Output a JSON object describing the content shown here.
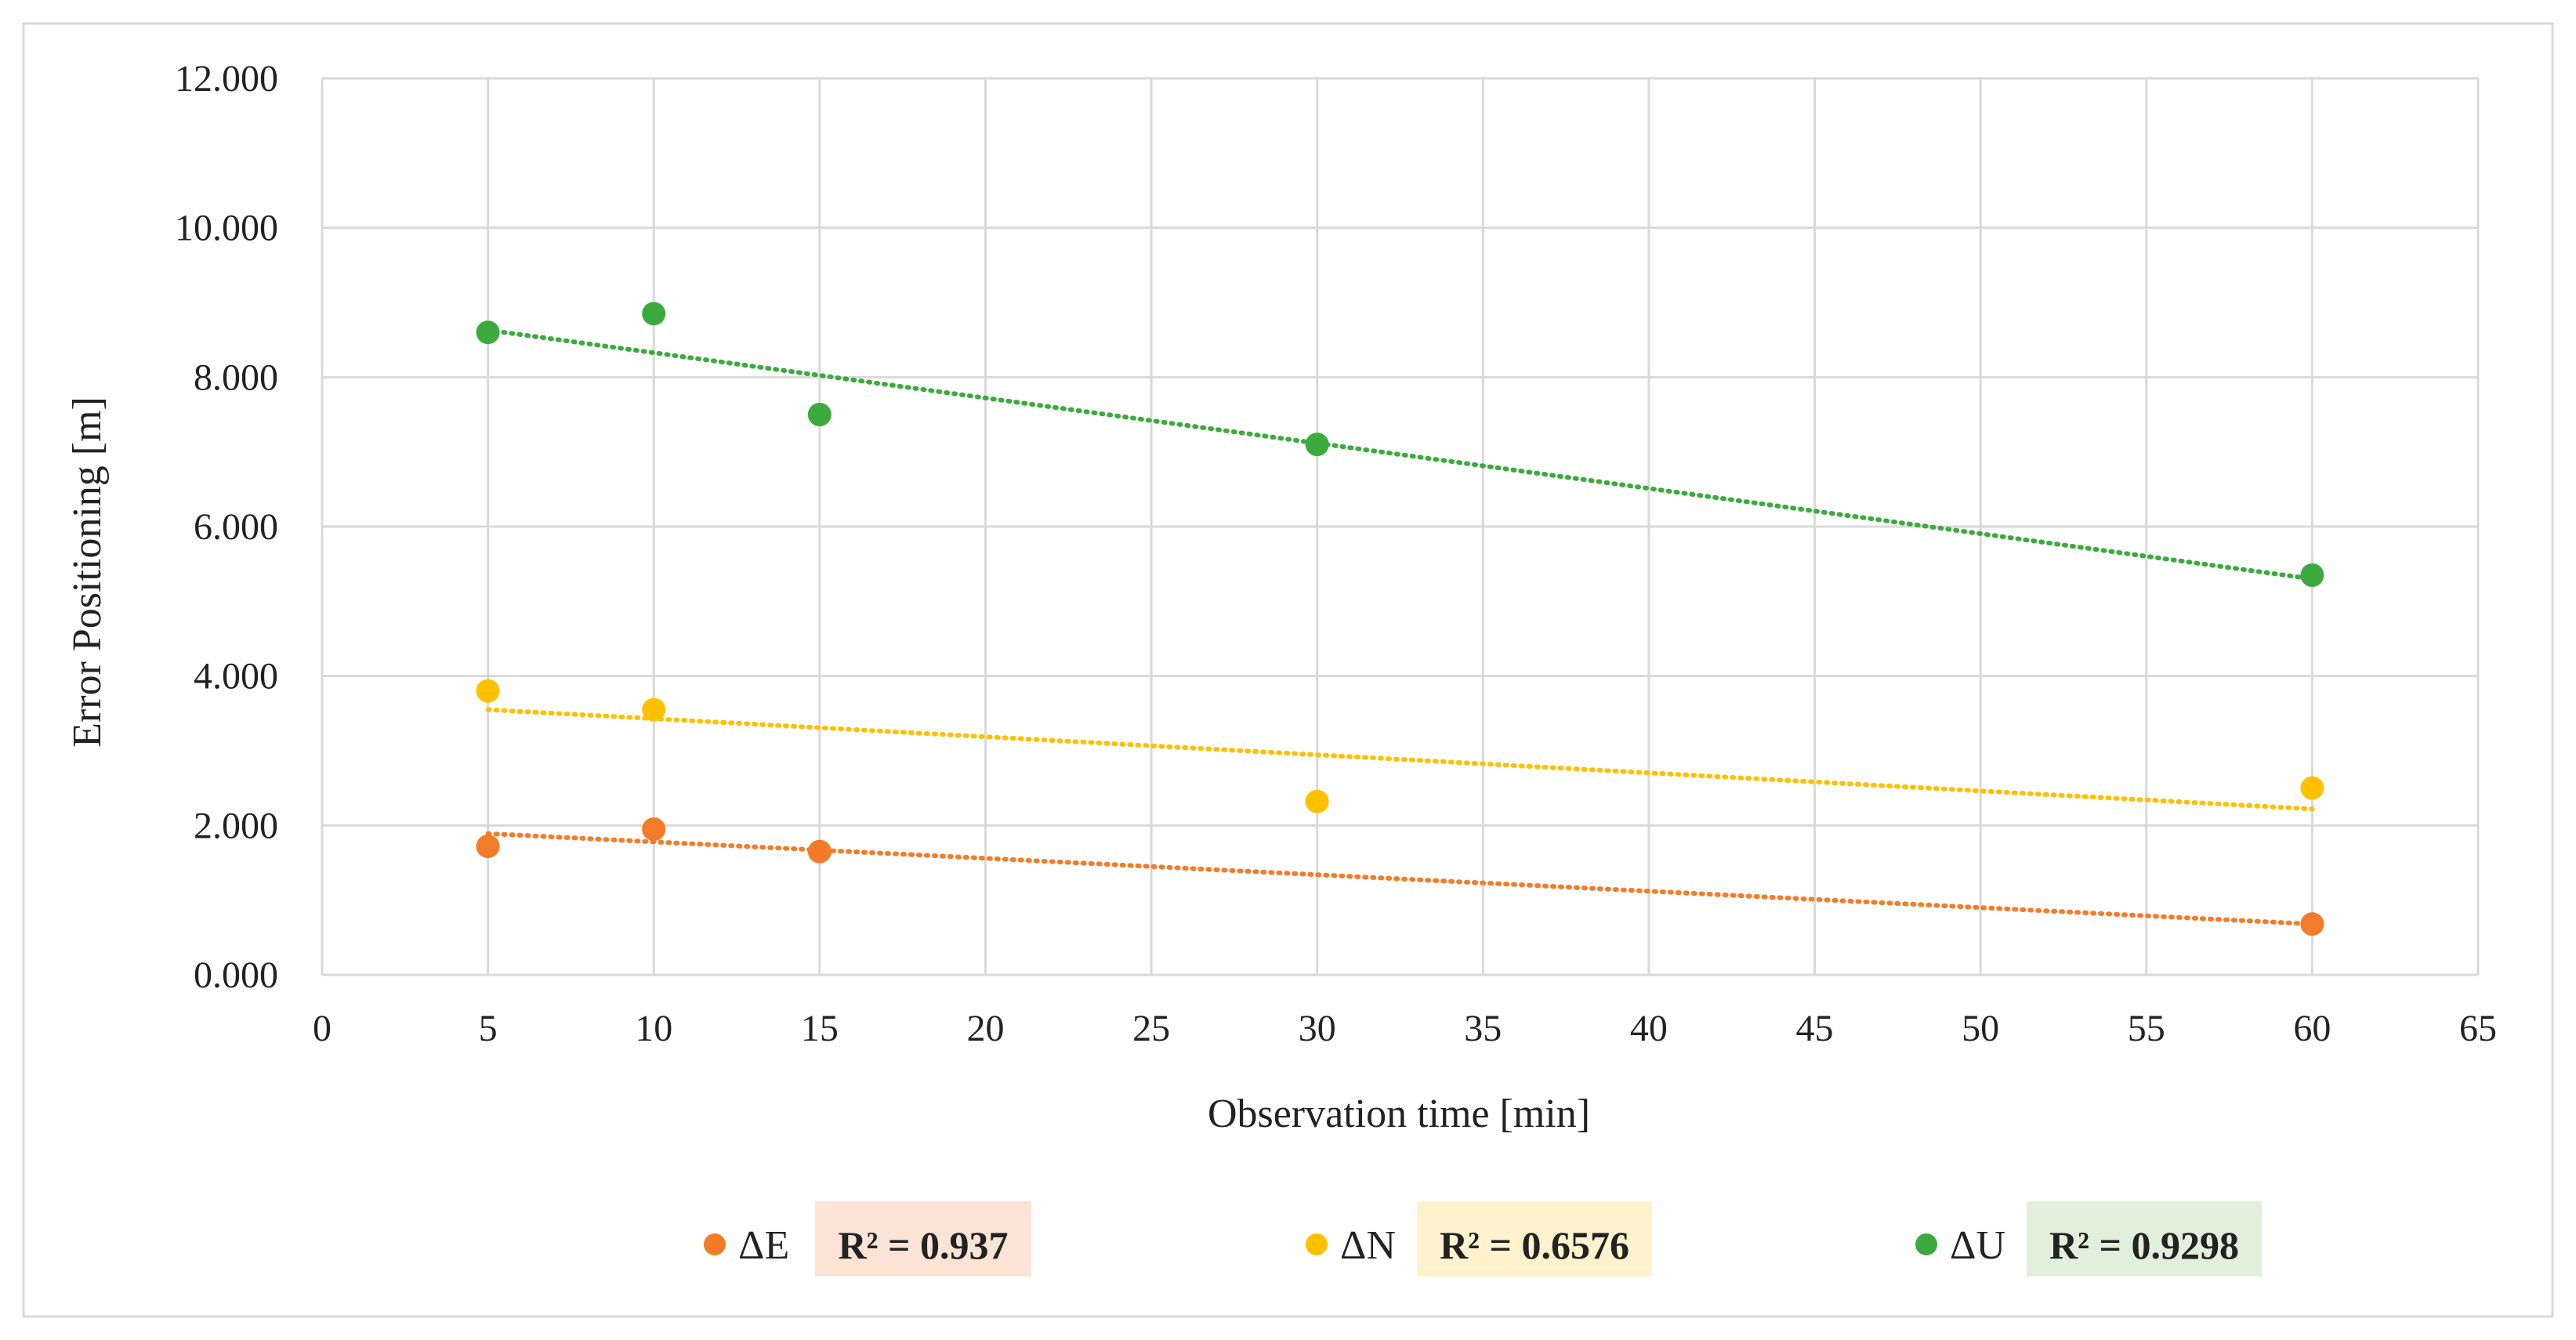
{
  "chart_data": {
    "type": "scatter",
    "title": "",
    "xlabel": "Observation time [min]",
    "ylabel": "Error Positioning [m]",
    "xlim": [
      0,
      65
    ],
    "ylim": [
      0,
      12
    ],
    "x_ticks": [
      0,
      5,
      10,
      15,
      20,
      25,
      30,
      35,
      40,
      45,
      50,
      55,
      60,
      65
    ],
    "x_tick_labels": [
      "0",
      "5",
      "10",
      "15",
      "20",
      "25",
      "30",
      "35",
      "40",
      "45",
      "50",
      "55",
      "60",
      "65"
    ],
    "y_ticks": [
      0,
      2,
      4,
      6,
      8,
      10,
      12
    ],
    "y_tick_labels": [
      "0.000",
      "2.000",
      "4.000",
      "6.000",
      "8.000",
      "10.000",
      "12.000"
    ],
    "grid": true,
    "legend_position": "bottom",
    "series": [
      {
        "name": "ΔE",
        "color": "#F47B28",
        "x": [
          5,
          10,
          15,
          60
        ],
        "y": [
          1.72,
          1.95,
          1.65,
          0.68
        ],
        "trendline": {
          "type": "linear",
          "x_start": 5,
          "y_start": 1.89,
          "x_end": 60,
          "y_end": 0.68
        },
        "r_squared_label": "R² = 0.937",
        "label_bg": "#FBE3D6"
      },
      {
        "name": "ΔN",
        "color": "#FFC000",
        "x": [
          5,
          10,
          30,
          60
        ],
        "y": [
          3.8,
          3.55,
          2.32,
          2.5
        ],
        "trendline": {
          "type": "linear",
          "x_start": 5,
          "y_start": 3.55,
          "x_end": 60,
          "y_end": 2.22
        },
        "r_squared_label": "R² = 0.6576",
        "label_bg": "#FFF2CC"
      },
      {
        "name": "ΔU",
        "color": "#3DAA3D",
        "x": [
          5,
          10,
          15,
          30,
          60
        ],
        "y": [
          8.6,
          8.85,
          7.5,
          7.1,
          5.35
        ],
        "trendline": {
          "type": "linear",
          "x_start": 5,
          "y_start": 8.63,
          "x_end": 60,
          "y_end": 5.3
        },
        "r_squared_label": "R² = 0.9298",
        "label_bg": "#E2EFDA"
      }
    ]
  }
}
